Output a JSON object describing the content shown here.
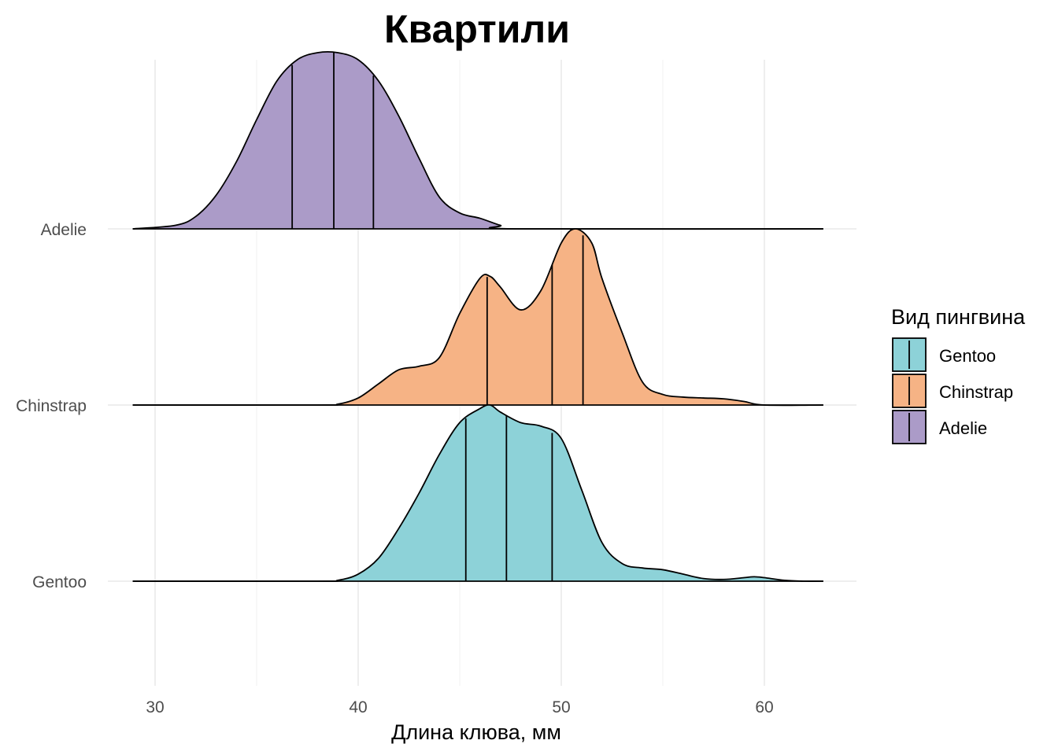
{
  "chart_data": {
    "type": "ridgeline",
    "title": "Квартили",
    "xlabel": "Длина клюва, мм",
    "ylabel": "",
    "xlim": [
      27.7,
      64.6
    ],
    "x_ticks": [
      30,
      40,
      50,
      60
    ],
    "x_range": [
      28.9,
      62.9
    ],
    "grid": true,
    "quantile_lines": "quartiles",
    "legend": {
      "title": "Вид пингвина",
      "position": "right",
      "entries": [
        "Gentoo",
        "Chinstrap",
        "Adelie"
      ]
    },
    "series": [
      {
        "name": "Adelie",
        "color": "#AB9BC8",
        "quartiles": [
          36.75,
          38.8,
          40.75
        ],
        "density": [
          [
            28.9,
            0.0
          ],
          [
            31,
            0.02
          ],
          [
            32,
            0.07
          ],
          [
            33,
            0.19
          ],
          [
            34,
            0.38
          ],
          [
            35,
            0.62
          ],
          [
            36,
            0.84
          ],
          [
            37,
            0.96
          ],
          [
            38,
            1.0
          ],
          [
            39,
            1.0
          ],
          [
            40,
            0.96
          ],
          [
            41,
            0.84
          ],
          [
            42,
            0.64
          ],
          [
            43,
            0.4
          ],
          [
            44,
            0.18
          ],
          [
            45,
            0.09
          ],
          [
            46,
            0.06
          ],
          [
            47,
            0.02
          ],
          [
            47.8,
            0.0
          ],
          [
            62.9,
            0.0
          ]
        ]
      },
      {
        "name": "Chinstrap",
        "color": "#F6B385",
        "quartiles": [
          46.35,
          49.55,
          51.07
        ],
        "density": [
          [
            28.9,
            0.0
          ],
          [
            38,
            0.0
          ],
          [
            39,
            0.005
          ],
          [
            40,
            0.04
          ],
          [
            41,
            0.12
          ],
          [
            42,
            0.2
          ],
          [
            43,
            0.22
          ],
          [
            44,
            0.27
          ],
          [
            45,
            0.52
          ],
          [
            46,
            0.72
          ],
          [
            46.5,
            0.73
          ],
          [
            47,
            0.67
          ],
          [
            48,
            0.54
          ],
          [
            49,
            0.65
          ],
          [
            50,
            0.92
          ],
          [
            50.7,
            1.0
          ],
          [
            51.5,
            0.92
          ],
          [
            52,
            0.72
          ],
          [
            53,
            0.41
          ],
          [
            54,
            0.13
          ],
          [
            55,
            0.06
          ],
          [
            56,
            0.045
          ],
          [
            57,
            0.04
          ],
          [
            58,
            0.035
          ],
          [
            59,
            0.02
          ],
          [
            60,
            0.0
          ],
          [
            62.9,
            0.0
          ]
        ]
      },
      {
        "name": "Gentoo",
        "color": "#8DD2D8",
        "quartiles": [
          45.3,
          47.3,
          49.55
        ],
        "density": [
          [
            28.9,
            0.0
          ],
          [
            38,
            0.0
          ],
          [
            39,
            0.005
          ],
          [
            40,
            0.04
          ],
          [
            41,
            0.13
          ],
          [
            42,
            0.3
          ],
          [
            43,
            0.5
          ],
          [
            44,
            0.72
          ],
          [
            45,
            0.9
          ],
          [
            46,
            0.98
          ],
          [
            46.5,
            1.0
          ],
          [
            47,
            0.96
          ],
          [
            48,
            0.9
          ],
          [
            49,
            0.88
          ],
          [
            50,
            0.81
          ],
          [
            51,
            0.52
          ],
          [
            52,
            0.22
          ],
          [
            53,
            0.1
          ],
          [
            54,
            0.075
          ],
          [
            55,
            0.065
          ],
          [
            56,
            0.04
          ],
          [
            57,
            0.015
          ],
          [
            58,
            0.01
          ],
          [
            59,
            0.02
          ],
          [
            59.5,
            0.025
          ],
          [
            60,
            0.02
          ],
          [
            61,
            0.005
          ],
          [
            62,
            0.0
          ],
          [
            62.9,
            0.0
          ]
        ]
      }
    ]
  }
}
